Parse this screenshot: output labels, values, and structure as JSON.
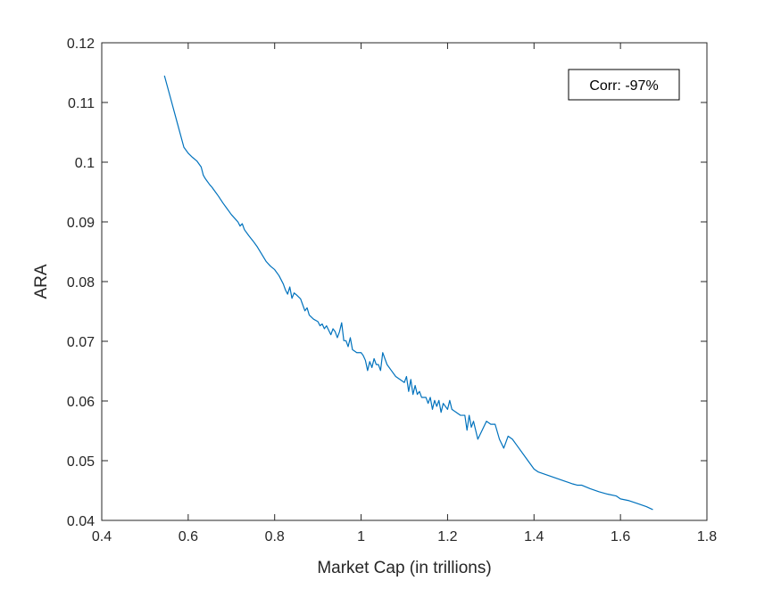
{
  "chart_data": {
    "type": "line",
    "title": "",
    "xlabel": "Market Cap (in trillions)",
    "ylabel": "ARA",
    "xlim": [
      0.4,
      1.8
    ],
    "ylim": [
      0.04,
      0.12
    ],
    "xticks": [
      "0.4",
      "0.6",
      "0.8",
      "1",
      "1.2",
      "1.4",
      "1.6",
      "1.8"
    ],
    "yticks": [
      "0.04",
      "0.05",
      "0.06",
      "0.07",
      "0.08",
      "0.09",
      "0.1",
      "0.11",
      "0.12"
    ],
    "grid": false,
    "annotation": "Corr: -97%",
    "line_color": "#0072BD",
    "series": [
      {
        "name": "",
        "x": [
          0.545,
          0.56,
          0.575,
          0.59,
          0.6,
          0.61,
          0.62,
          0.63,
          0.635,
          0.64,
          0.65,
          0.655,
          0.66,
          0.67,
          0.68,
          0.69,
          0.7,
          0.71,
          0.715,
          0.72,
          0.725,
          0.73,
          0.74,
          0.75,
          0.76,
          0.77,
          0.78,
          0.79,
          0.8,
          0.81,
          0.82,
          0.825,
          0.83,
          0.835,
          0.84,
          0.845,
          0.85,
          0.86,
          0.865,
          0.87,
          0.875,
          0.88,
          0.89,
          0.9,
          0.905,
          0.91,
          0.915,
          0.92,
          0.93,
          0.935,
          0.94,
          0.945,
          0.95,
          0.955,
          0.96,
          0.965,
          0.97,
          0.975,
          0.98,
          0.99,
          1.0,
          1.005,
          1.01,
          1.015,
          1.02,
          1.025,
          1.03,
          1.035,
          1.04,
          1.045,
          1.05,
          1.055,
          1.06,
          1.07,
          1.08,
          1.09,
          1.1,
          1.105,
          1.11,
          1.115,
          1.12,
          1.125,
          1.13,
          1.135,
          1.14,
          1.15,
          1.155,
          1.16,
          1.165,
          1.17,
          1.175,
          1.18,
          1.185,
          1.19,
          1.2,
          1.205,
          1.21,
          1.22,
          1.23,
          1.24,
          1.245,
          1.25,
          1.255,
          1.26,
          1.27,
          1.28,
          1.29,
          1.3,
          1.31,
          1.32,
          1.33,
          1.34,
          1.35,
          1.36,
          1.38,
          1.4,
          1.41,
          1.43,
          1.45,
          1.47,
          1.49,
          1.5,
          1.51,
          1.52,
          1.53,
          1.55,
          1.57,
          1.59,
          1.6,
          1.62,
          1.64,
          1.66,
          1.675
        ],
        "y": [
          0.1145,
          0.1105,
          0.1065,
          0.1025,
          0.1015,
          0.1008,
          0.1002,
          0.0992,
          0.0978,
          0.0972,
          0.0962,
          0.0958,
          0.0953,
          0.0943,
          0.0932,
          0.0922,
          0.0912,
          0.0904,
          0.09,
          0.0893,
          0.0897,
          0.0887,
          0.0877,
          0.0868,
          0.0858,
          0.0846,
          0.0834,
          0.0826,
          0.082,
          0.081,
          0.0796,
          0.0786,
          0.0779,
          0.0791,
          0.0772,
          0.0781,
          0.0778,
          0.0771,
          0.0761,
          0.0751,
          0.0756,
          0.0744,
          0.0737,
          0.0733,
          0.0726,
          0.0729,
          0.0721,
          0.0726,
          0.0711,
          0.0721,
          0.0716,
          0.0706,
          0.0716,
          0.0731,
          0.0701,
          0.0701,
          0.0691,
          0.0706,
          0.0686,
          0.0681,
          0.0681,
          0.0676,
          0.0668,
          0.0651,
          0.0666,
          0.0656,
          0.0671,
          0.0661,
          0.0661,
          0.0651,
          0.0681,
          0.0671,
          0.0661,
          0.0651,
          0.0641,
          0.0636,
          0.0631,
          0.0641,
          0.0616,
          0.0636,
          0.0611,
          0.0626,
          0.0611,
          0.0616,
          0.0606,
          0.0606,
          0.0596,
          0.0606,
          0.0586,
          0.0601,
          0.0591,
          0.0601,
          0.0581,
          0.0596,
          0.0586,
          0.0601,
          0.0586,
          0.0581,
          0.0576,
          0.0576,
          0.0551,
          0.0576,
          0.0556,
          0.0566,
          0.0536,
          0.0551,
          0.0566,
          0.0561,
          0.0561,
          0.0536,
          0.0521,
          0.0541,
          0.0536,
          0.0526,
          0.0506,
          0.0486,
          0.0481,
          0.0476,
          0.0471,
          0.0466,
          0.0461,
          0.0459,
          0.0459,
          0.0456,
          0.0453,
          0.0448,
          0.0444,
          0.0441,
          0.0436,
          0.0433,
          0.0428,
          0.0423,
          0.0418
        ]
      }
    ]
  }
}
